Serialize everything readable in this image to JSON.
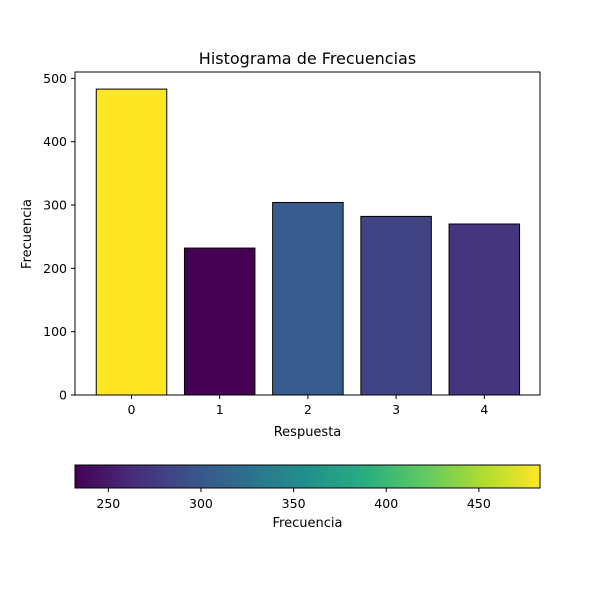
{
  "chart_data": {
    "type": "bar",
    "title": "Histograma de Frecuencias",
    "xlabel": "Respuesta",
    "ylabel": "Frecuencia",
    "categories": [
      "0",
      "1",
      "2",
      "3",
      "4"
    ],
    "values": [
      483,
      232,
      304,
      282,
      270
    ],
    "ylim": [
      0,
      510
    ],
    "yticks": [
      0,
      100,
      200,
      300,
      400,
      500
    ],
    "grid": false,
    "colormap": "viridis",
    "bar_edge_color": "#000000",
    "colorbar": {
      "label": "Frecuencia",
      "range": [
        232,
        483
      ],
      "ticks": [
        250,
        300,
        350,
        400,
        450
      ],
      "orientation": "horizontal"
    }
  }
}
